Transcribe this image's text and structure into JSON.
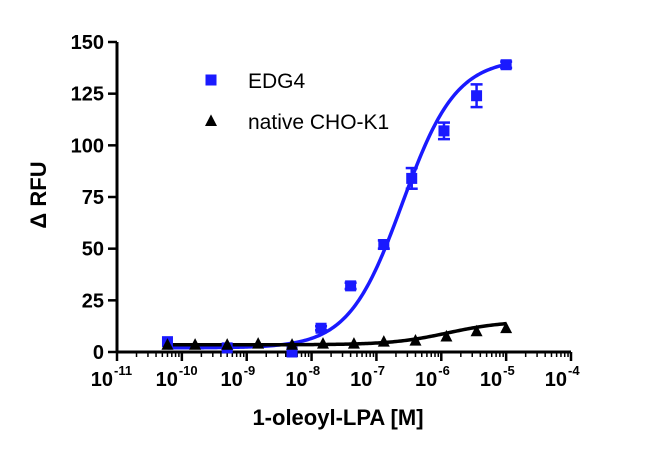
{
  "chart_data": {
    "type": "scatter",
    "xlabel": "1-oleoyl-LPA [M]",
    "ylabel": "Δ RFU",
    "xscale": "log",
    "xlim": [
      1e-11,
      0.0001
    ],
    "ylim": [
      0,
      150
    ],
    "x_ticks": [
      {
        "base": "10",
        "exp": "-11",
        "value": 1e-11
      },
      {
        "base": "10",
        "exp": "-10",
        "value": 1e-10
      },
      {
        "base": "10",
        "exp": "-9",
        "value": 1e-09
      },
      {
        "base": "10",
        "exp": "-8",
        "value": 1e-08
      },
      {
        "base": "10",
        "exp": "-7",
        "value": 1e-07
      },
      {
        "base": "10",
        "exp": "-6",
        "value": 1e-06
      },
      {
        "base": "10",
        "exp": "-5",
        "value": 1e-05
      },
      {
        "base": "10",
        "exp": "-4",
        "value": 0.0001
      }
    ],
    "y_ticks": [
      "0",
      "25",
      "50",
      "75",
      "100",
      "125",
      "150"
    ],
    "legend_position": "top-left",
    "series": [
      {
        "name": "EDG4",
        "color": "#1a1aff",
        "marker": "square",
        "x": [
          6e-11,
          5e-10,
          5e-09,
          1.4e-08,
          4e-08,
          1.3e-07,
          3.5e-07,
          1.1e-06,
          3.5e-06,
          1e-05
        ],
        "y": [
          5,
          2,
          0,
          11.5,
          32,
          52,
          84,
          107,
          124,
          139
        ],
        "err": [
          0,
          0,
          0,
          1,
          1.5,
          2,
          5,
          4,
          5.5,
          1.5
        ],
        "fit": {
          "bottom": 2,
          "top": 142,
          "logEC50": -6.6,
          "hill": 1.05
        }
      },
      {
        "name": "native CHO-K1",
        "color": "#000000",
        "marker": "triangle",
        "x": [
          6e-11,
          1.6e-10,
          5e-10,
          1.5e-09,
          5e-09,
          1.5e-08,
          4.5e-08,
          1.3e-07,
          4e-07,
          1.2e-06,
          3.5e-06,
          1e-05
        ],
        "y": [
          3.5,
          3.5,
          3.5,
          4,
          3.5,
          4,
          4,
          5,
          5.5,
          7.5,
          10,
          11.5
        ],
        "err": [
          0,
          0,
          0,
          0,
          0,
          0,
          0,
          0,
          0,
          0,
          0,
          0
        ],
        "fit": {
          "bottom": 3.5,
          "top": 15,
          "logEC50": -5.9,
          "hill": 1.0
        }
      }
    ]
  }
}
